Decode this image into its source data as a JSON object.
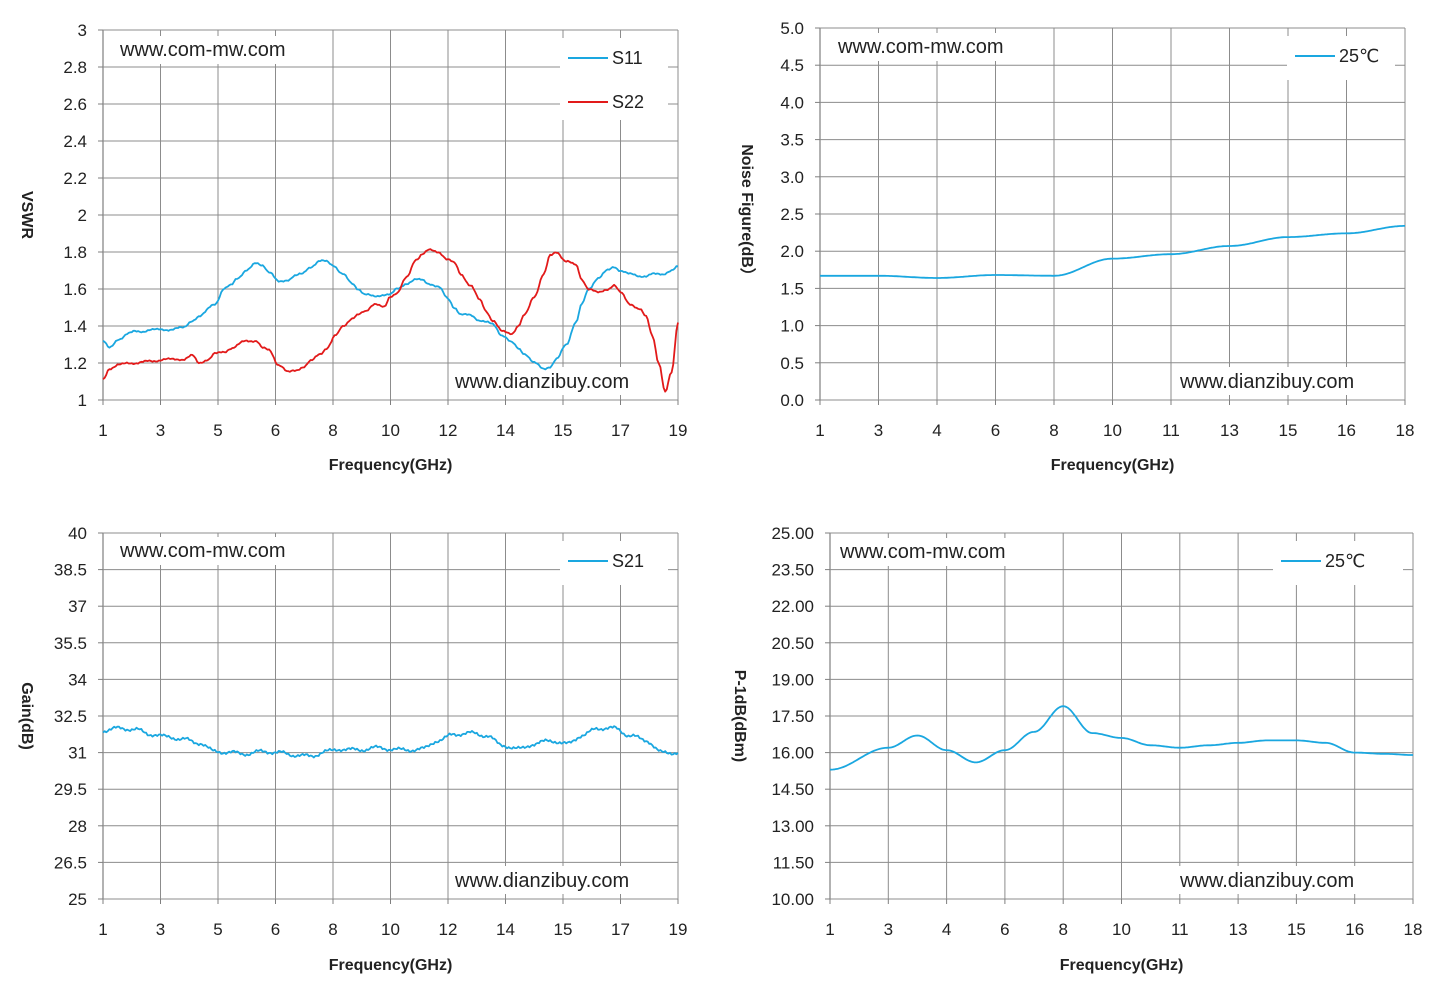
{
  "chart_data": [
    {
      "type": "line",
      "xlabel": "Frequency(GHz)",
      "ylabel": "VSWR",
      "x_ticks": [
        "1",
        "3",
        "5",
        "6",
        "8",
        "10",
        "12",
        "14",
        "15",
        "17",
        "19"
      ],
      "y_ticks": [
        "1",
        "1.2",
        "1.4",
        "1.6",
        "1.8",
        "2",
        "2.2",
        "2.4",
        "2.6",
        "2.8",
        "3"
      ],
      "ylim": [
        1,
        3
      ],
      "grid": true,
      "legend_position": "top-right",
      "watermarks": [
        "www.com-mw.com",
        "www.dianzibuy.com"
      ],
      "series": [
        {
          "name": "S11",
          "color": "#1aa7e0",
          "noise": 0.008,
          "x": [
            0,
            0.2,
            0.5,
            0.8,
            1,
            1.2,
            1.5,
            2,
            2.5,
            2.8,
            3,
            3.5,
            3.8,
            4,
            4.2,
            4.5,
            4.8,
            5,
            5.2,
            5.5,
            5.8,
            6,
            6.2,
            6.5,
            6.8,
            7,
            7.2,
            7.5,
            7.8,
            8,
            8.2,
            8.5,
            8.8,
            9,
            9.2,
            9.5,
            9.8,
            10,
            10.2,
            10.5,
            10.8,
            11,
            11.2,
            11.5,
            11.8,
            12,
            12.2,
            12.5,
            12.8,
            13,
            13.2,
            13.5,
            13.8,
            14,
            14.2,
            14.5,
            14.8,
            15,
            15.2,
            15.5,
            15.8,
            16,
            16.2,
            16.5,
            16.8,
            17,
            17.2,
            17.5,
            17.8,
            18
          ],
          "y": [
            1.32,
            1.28,
            1.33,
            1.36,
            1.37,
            1.37,
            1.38,
            1.38,
            1.39,
            1.43,
            1.45,
            1.52,
            1.6,
            1.62,
            1.66,
            1.7,
            1.74,
            1.73,
            1.69,
            1.64,
            1.65,
            1.67,
            1.68,
            1.72,
            1.75,
            1.75,
            1.73,
            1.68,
            1.63,
            1.6,
            1.57,
            1.56,
            1.57,
            1.57,
            1.6,
            1.63,
            1.65,
            1.65,
            1.63,
            1.61,
            1.55,
            1.5,
            1.46,
            1.46,
            1.43,
            1.42,
            1.41,
            1.35,
            1.31,
            1.28,
            1.25,
            1.2,
            1.17,
            1.18,
            1.22,
            1.3,
            1.42,
            1.52,
            1.6,
            1.66,
            1.7,
            1.72,
            1.7,
            1.68,
            1.67,
            1.67,
            1.68,
            1.68,
            1.7,
            1.72
          ]
        },
        {
          "name": "S22",
          "color": "#e21a1a",
          "noise": 0.008,
          "x": [
            0,
            0.2,
            0.5,
            0.8,
            1,
            1.5,
            2,
            2.5,
            2.8,
            3,
            3.3,
            3.5,
            3.8,
            4,
            4.5,
            4.8,
            5,
            5.2,
            5.5,
            5.8,
            6,
            6.3,
            6.5,
            6.8,
            7,
            7.3,
            7.5,
            7.8,
            8,
            8.2,
            8.5,
            8.8,
            9,
            9.2,
            9.5,
            9.8,
            10,
            10.2,
            10.5,
            10.8,
            11,
            11.2,
            11.5,
            11.8,
            12,
            12.2,
            12.5,
            12.8,
            13,
            13.2,
            13.5,
            13.8,
            14,
            14.2,
            14.5,
            14.8,
            15,
            15.2,
            15.5,
            15.8,
            16,
            16.2,
            16.5,
            16.8,
            17,
            17.2,
            17.4,
            17.6,
            17.8,
            18
          ],
          "y": [
            1.11,
            1.17,
            1.19,
            1.2,
            1.2,
            1.21,
            1.22,
            1.22,
            1.24,
            1.2,
            1.22,
            1.25,
            1.26,
            1.28,
            1.32,
            1.32,
            1.28,
            1.27,
            1.19,
            1.15,
            1.16,
            1.18,
            1.21,
            1.25,
            1.28,
            1.35,
            1.4,
            1.44,
            1.46,
            1.48,
            1.52,
            1.5,
            1.56,
            1.58,
            1.66,
            1.76,
            1.79,
            1.81,
            1.8,
            1.76,
            1.74,
            1.68,
            1.62,
            1.54,
            1.48,
            1.43,
            1.37,
            1.36,
            1.4,
            1.46,
            1.56,
            1.68,
            1.78,
            1.8,
            1.75,
            1.73,
            1.65,
            1.6,
            1.58,
            1.6,
            1.62,
            1.58,
            1.52,
            1.49,
            1.45,
            1.35,
            1.2,
            1.04,
            1.15,
            1.42
          ]
        }
      ]
    },
    {
      "type": "line",
      "xlabel": "Frequency(GHz)",
      "ylabel": "Noise Figure(dB）",
      "x_ticks": [
        "1",
        "3",
        "4",
        "6",
        "8",
        "10",
        "11",
        "13",
        "15",
        "16",
        "18"
      ],
      "y_ticks": [
        "0.0",
        "0.5",
        "1.0",
        "1.5",
        "2.0",
        "2.5",
        "3.0",
        "3.5",
        "4.0",
        "4.5",
        "5.0"
      ],
      "ylim": [
        0,
        5
      ],
      "grid": true,
      "legend_position": "top-right",
      "watermarks": [
        "www.com-mw.com",
        "www.dianzibuy.com"
      ],
      "series": [
        {
          "name": "25℃",
          "color": "#1aa7e0",
          "noise": 0,
          "x": [
            0,
            1,
            2,
            3,
            4,
            5,
            6,
            7,
            8,
            9,
            10
          ],
          "y": [
            1.67,
            1.67,
            1.64,
            1.68,
            1.67,
            1.9,
            1.96,
            2.07,
            2.19,
            2.24,
            2.34
          ]
        }
      ]
    },
    {
      "type": "line",
      "xlabel": "Frequency(GHz)",
      "ylabel": "Gain(dB)",
      "x_ticks": [
        "1",
        "3",
        "5",
        "6",
        "8",
        "10",
        "12",
        "14",
        "15",
        "17",
        "19"
      ],
      "y_ticks": [
        "25",
        "26.5",
        "28",
        "29.5",
        "31",
        "32.5",
        "34",
        "35.5",
        "37",
        "38.5",
        "40"
      ],
      "ylim": [
        25,
        40
      ],
      "grid": true,
      "legend_position": "top-right",
      "watermarks": [
        "www.com-mw.com",
        "www.dianzibuy.com"
      ],
      "series": [
        {
          "name": "S21",
          "color": "#1aa7e0",
          "noise": 0.12,
          "x": [
            0,
            0.5,
            1,
            1.5,
            2,
            2.5,
            3,
            3.5,
            4,
            4.5,
            5,
            5.5,
            6,
            6.5,
            7,
            7.5,
            8,
            8.5,
            9,
            9.5,
            10,
            10.5,
            11,
            11.5,
            12,
            12.5,
            13,
            13.5,
            14,
            14.5,
            15,
            15.5,
            16,
            16.5,
            17,
            17.5,
            18
          ],
          "y": [
            31.9,
            32.0,
            31.95,
            31.75,
            31.65,
            31.55,
            31.4,
            31.05,
            31.0,
            30.95,
            31.05,
            31.0,
            30.9,
            30.85,
            31.05,
            31.15,
            31.1,
            31.2,
            31.15,
            31.1,
            31.15,
            31.5,
            31.75,
            31.8,
            31.7,
            31.3,
            31.15,
            31.35,
            31.5,
            31.35,
            31.7,
            32.0,
            32.0,
            31.7,
            31.5,
            31.0,
            31.0
          ]
        }
      ]
    },
    {
      "type": "line",
      "xlabel": "Frequency(GHz)",
      "ylabel": "P-1dB(dBm)",
      "x_ticks": [
        "1",
        "3",
        "4",
        "6",
        "8",
        "10",
        "11",
        "13",
        "15",
        "16",
        "18"
      ],
      "y_ticks": [
        "10.00",
        "11.50",
        "13.00",
        "14.50",
        "16.00",
        "17.50",
        "19.00",
        "20.50",
        "22.00",
        "23.50",
        "25.00"
      ],
      "ylim": [
        10,
        25
      ],
      "grid": true,
      "legend_position": "top-right",
      "watermarks": [
        "www.com-mw.com",
        "www.dianzibuy.com"
      ],
      "series": [
        {
          "name": "25℃",
          "color": "#1aa7e0",
          "noise": 0,
          "x": [
            0,
            1,
            1.5,
            2,
            2.5,
            3,
            3.5,
            4,
            4.5,
            5,
            5.5,
            6,
            6.5,
            7,
            7.5,
            8,
            8.5,
            9,
            9.5,
            10
          ],
          "y": [
            15.3,
            16.2,
            16.7,
            16.1,
            15.6,
            16.1,
            16.85,
            17.9,
            16.8,
            16.6,
            16.3,
            16.2,
            16.3,
            16.4,
            16.5,
            16.5,
            16.4,
            16.0,
            15.95,
            15.9
          ]
        }
      ]
    }
  ]
}
